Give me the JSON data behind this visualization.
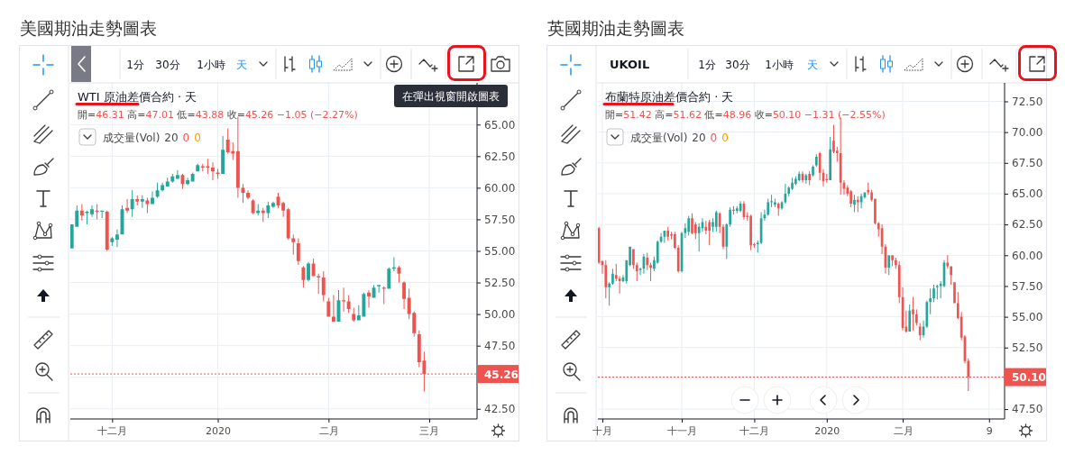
{
  "chart_data": [
    {
      "type": "candlestick",
      "title": "美國期油走勢圖表",
      "annotations": [
        "WTI 原油差價合約 · 天",
        "開=46.31 高=47.01 低=43.88 收=45.26 −1.05 (−2.27%)",
        "成交量(Vol) 20 0 0",
        "1分",
        "30分",
        "1小時",
        "天",
        "在彈出視窗開啟圖表"
      ],
      "categories": [
        null,
        null,
        null,
        null,
        null,
        null,
        null,
        null,
        "十二月",
        null,
        null,
        null,
        null,
        null,
        null,
        null,
        null,
        null,
        null,
        null,
        null,
        null,
        null,
        null,
        null,
        null,
        null,
        null,
        null,
        "2020",
        null,
        null,
        null,
        null,
        null,
        null,
        null,
        null,
        null,
        null,
        null,
        null,
        null,
        null,
        null,
        null,
        null,
        null,
        null,
        null,
        null,
        "二月",
        null,
        null,
        null,
        null,
        null,
        null,
        null,
        null,
        null,
        null,
        null,
        null,
        null,
        null,
        null,
        null,
        null,
        null,
        null,
        "三月",
        null,
        null,
        null,
        null,
        null,
        null,
        null,
        null,
        null
      ],
      "ohlc": [
        [
          55.2,
          57.1,
          55.2,
          57.1
        ],
        [
          56.9,
          58.6,
          56.9,
          58.2
        ],
        [
          58.2,
          58.7,
          57.4,
          57.8
        ],
        [
          58.0,
          58.2,
          57.1,
          58.1
        ],
        [
          57.9,
          58.6,
          57.7,
          58.3
        ],
        [
          58.2,
          58.7,
          57.5,
          58.1
        ],
        [
          58.1,
          58.2,
          57.6,
          58.2
        ],
        [
          58.1,
          58.2,
          55.0,
          55.1
        ],
        [
          55.7,
          56.1,
          55.4,
          56.0
        ],
        [
          55.9,
          56.7,
          55.3,
          56.3
        ],
        [
          56.3,
          58.6,
          56.3,
          58.3
        ],
        [
          58.4,
          59.1,
          58.0,
          58.2
        ],
        [
          58.3,
          59.8,
          57.7,
          59.1
        ],
        [
          59.1,
          59.4,
          58.6,
          58.9
        ],
        [
          58.9,
          59.4,
          58.4,
          59.1
        ],
        [
          59.0,
          59.2,
          58.0,
          58.7
        ],
        [
          58.7,
          59.7,
          58.7,
          59.2
        ],
        [
          59.3,
          60.4,
          59.2,
          59.8
        ],
        [
          59.8,
          60.4,
          59.7,
          60.2
        ],
        [
          60.1,
          60.8,
          60.1,
          60.5
        ],
        [
          60.5,
          61.1,
          60.4,
          60.9
        ],
        [
          60.7,
          61.4,
          60.7,
          61.0
        ],
        [
          61.0,
          61.1,
          59.9,
          60.3
        ],
        [
          60.3,
          60.8,
          60.2,
          60.6
        ],
        [
          60.5,
          61.2,
          60.5,
          61.1
        ],
        [
          61.3,
          61.9,
          61.3,
          61.8
        ],
        [
          61.7,
          61.9,
          61.3,
          61.6
        ],
        [
          61.7,
          62.3,
          61.1,
          61.6
        ],
        [
          61.6,
          62.0,
          60.6,
          61.3
        ],
        [
          61.2,
          61.5,
          60.7,
          61.1
        ],
        [
          61.1,
          64.1,
          61.1,
          63.0
        ],
        [
          63.8,
          64.7,
          62.7,
          62.8
        ],
        [
          62.9,
          63.6,
          62.2,
          62.7
        ],
        [
          62.9,
          65.6,
          59.2,
          60.0
        ],
        [
          60.0,
          60.3,
          58.8,
          59.6
        ],
        [
          59.6,
          59.8,
          59.1,
          59.2
        ],
        [
          59.0,
          59.1,
          57.9,
          58.0
        ],
        [
          58.0,
          58.7,
          57.8,
          58.2
        ],
        [
          58.2,
          58.4,
          57.3,
          58.0
        ],
        [
          58.0,
          58.9,
          57.6,
          58.6
        ],
        [
          58.5,
          58.9,
          58.4,
          58.8
        ],
        [
          59.3,
          59.6,
          58.4,
          58.6
        ],
        [
          58.8,
          58.9,
          57.7,
          58.2
        ],
        [
          58.3,
          58.4,
          55.9,
          56.0
        ],
        [
          56.0,
          56.3,
          54.7,
          55.7
        ],
        [
          55.6,
          56.0,
          53.9,
          54.2
        ],
        [
          53.7,
          53.8,
          52.1,
          52.7
        ],
        [
          52.7,
          54.1,
          52.6,
          54.0
        ],
        [
          54.0,
          54.4,
          53.0,
          53.0
        ],
        [
          53.0,
          53.2,
          51.6,
          52.9
        ],
        [
          52.9,
          53.4,
          51.0,
          51.5
        ],
        [
          51.0,
          51.3,
          49.8,
          49.8
        ],
        [
          49.8,
          51.5,
          49.4,
          49.4
        ],
        [
          49.4,
          51.9,
          49.4,
          51.1
        ],
        [
          51.1,
          52.1,
          50.2,
          51.0
        ],
        [
          51.0,
          51.5,
          50.1,
          50.4
        ],
        [
          50.0,
          50.5,
          49.4,
          49.5
        ],
        [
          49.5,
          50.7,
          49.5,
          49.9
        ],
        [
          49.8,
          51.7,
          49.8,
          51.6
        ],
        [
          51.7,
          51.9,
          50.5,
          51.4
        ],
        [
          51.3,
          52.3,
          51.3,
          52.1
        ],
        [
          52.2,
          52.3,
          51.7,
          52.3
        ],
        [
          52.1,
          52.2,
          50.8,
          52.0
        ],
        [
          52.0,
          53.7,
          52.0,
          53.6
        ],
        [
          53.6,
          54.5,
          53.4,
          53.7
        ],
        [
          53.7,
          53.8,
          52.5,
          53.2
        ],
        [
          52.5,
          52.6,
          50.4,
          51.2
        ],
        [
          51.3,
          52.0,
          49.6,
          50.0
        ],
        [
          50.1,
          50.2,
          48.2,
          48.5
        ],
        [
          48.4,
          48.7,
          45.8,
          46.2
        ],
        [
          46.31,
          47.01,
          43.88,
          45.26
        ],
        null,
        null,
        null,
        null,
        null,
        null,
        null,
        null,
        null,
        null
      ],
      "ylim": [
        41.7,
        68.3
      ],
      "yticks": [
        {
          "value": 42.5,
          "label": "42.50"
        },
        {
          "value": 45,
          "label": null
        },
        {
          "value": 47.5,
          "label": "47.50"
        },
        {
          "value": 50,
          "label": "50.00"
        },
        {
          "value": 52.5,
          "label": "52.50"
        },
        {
          "value": 55,
          "label": "55.00"
        },
        {
          "value": 57.5,
          "label": "57.50"
        },
        {
          "value": 60,
          "label": "60.00"
        },
        {
          "value": 62.5,
          "label": "62.50"
        },
        {
          "value": 65,
          "label": "65.00"
        }
      ],
      "ref_lines": [
        {
          "axis": "y",
          "value": 45.26,
          "label": "45.26",
          "color": "#ef5350",
          "line_style": "dotted"
        }
      ],
      "grid": true
    },
    {
      "type": "candlestick",
      "title": "英國期油走勢圖表",
      "annotations": [
        "布蘭特原油差價合約 · 天",
        "開=51.42 高=51.62 低=48.96 收=50.10 −1.31 (−2.55%)",
        "成交量(Vol) 20 0 0",
        "1分",
        "30分",
        "1小時",
        "天",
        "UKOIL"
      ],
      "categories": [
        null,
        "十月",
        null,
        null,
        null,
        null,
        null,
        null,
        null,
        null,
        null,
        null,
        null,
        null,
        null,
        null,
        null,
        null,
        null,
        null,
        null,
        null,
        null,
        null,
        "十一月",
        null,
        null,
        null,
        null,
        null,
        null,
        null,
        null,
        null,
        null,
        null,
        null,
        null,
        null,
        null,
        null,
        null,
        null,
        null,
        null,
        "十二月",
        null,
        null,
        null,
        null,
        null,
        null,
        null,
        null,
        null,
        null,
        null,
        null,
        null,
        null,
        null,
        null,
        null,
        null,
        null,
        null,
        "2020",
        null,
        null,
        null,
        null,
        null,
        null,
        null,
        null,
        null,
        null,
        null,
        null,
        null,
        null,
        null,
        null,
        null,
        null,
        null,
        null,
        null,
        "二月",
        null,
        null,
        null,
        null,
        null,
        null,
        null,
        null,
        null,
        null,
        null,
        null,
        null,
        null,
        null,
        null,
        null,
        null,
        null,
        null,
        null,
        null,
        null,
        null,
        "9",
        null,
        null,
        null,
        null
      ],
      "ohlc": [
        [
          62.2,
          62.3,
          59.3,
          59.4
        ],
        [
          59.5,
          59.6,
          58.5,
          59.2
        ],
        [
          59.2,
          59.6,
          56.5,
          57.4
        ],
        [
          57.4,
          57.8,
          55.9,
          57.7
        ],
        [
          57.7,
          58.9,
          57.6,
          58.5
        ],
        [
          58.4,
          59.3,
          57.9,
          58.1
        ],
        [
          58.1,
          58.3,
          56.9,
          57.9
        ],
        [
          57.9,
          58.4,
          57.8,
          58.2
        ],
        [
          57.9,
          59.6,
          57.7,
          59.6
        ],
        [
          59.2,
          60.7,
          59.1,
          60.7
        ],
        [
          60.5,
          60.5,
          58.9,
          59.2
        ],
        [
          59.2,
          59.4,
          57.9,
          58.7
        ],
        [
          58.8,
          59.0,
          58.4,
          58.9
        ],
        [
          58.9,
          60.1,
          58.5,
          59.9
        ],
        [
          59.8,
          60.2,
          58.8,
          59.2
        ],
        [
          59.2,
          59.4,
          57.9,
          59.0
        ],
        [
          58.9,
          59.9,
          58.7,
          59.6
        ],
        [
          59.4,
          61.2,
          59.3,
          61.1
        ],
        [
          61.1,
          61.8,
          61.0,
          61.5
        ],
        [
          61.5,
          62.0,
          61.0,
          62.0
        ],
        [
          62.0,
          62.3,
          61.2,
          61.5
        ],
        [
          61.7,
          61.9,
          61.3,
          61.6
        ],
        [
          61.7,
          61.9,
          60.5,
          60.6
        ],
        [
          60.6,
          60.8,
          58.6,
          58.7
        ],
        [
          58.7,
          61.9,
          58.6,
          61.8
        ],
        [
          61.8,
          62.6,
          61.4,
          62.2
        ],
        [
          61.9,
          63.2,
          61.6,
          63.0
        ],
        [
          63.0,
          63.4,
          61.7,
          61.8
        ],
        [
          62.5,
          62.7,
          61.3,
          61.8
        ],
        [
          61.8,
          62.6,
          60.3,
          62.3
        ],
        [
          62.2,
          63.0,
          61.9,
          62.7
        ],
        [
          62.3,
          62.8,
          61.7,
          62.0
        ],
        [
          62.7,
          62.9,
          60.8,
          62.0
        ],
        [
          62.3,
          63.0,
          61.9,
          62.7
        ],
        [
          62.3,
          63.6,
          61.9,
          63.5
        ],
        [
          63.4,
          63.5,
          61.8,
          62.3
        ],
        [
          62.3,
          62.5,
          60.5,
          60.7
        ],
        [
          60.7,
          62.6,
          59.7,
          62.5
        ],
        [
          62.5,
          63.9,
          62.3,
          63.7
        ],
        [
          63.7,
          64.0,
          63.3,
          63.6
        ],
        [
          63.6,
          64.0,
          63.4,
          63.8
        ],
        [
          63.6,
          64.4,
          63.5,
          64.2
        ],
        [
          64.2,
          64.4,
          62.9,
          63.1
        ],
        [
          63.2,
          63.5,
          62.8,
          63.1
        ],
        [
          63.2,
          63.3,
          60.4,
          60.8
        ],
        [
          60.9,
          61.0,
          60.6,
          60.8
        ],
        [
          60.9,
          61.2,
          60.2,
          61.0
        ],
        [
          61.0,
          63.5,
          60.9,
          63.0
        ],
        [
          63.0,
          63.7,
          62.8,
          63.3
        ],
        [
          63.3,
          64.6,
          63.2,
          64.3
        ],
        [
          64.3,
          64.9,
          63.9,
          64.4
        ],
        [
          64.1,
          64.6,
          63.9,
          64.3
        ],
        [
          64.2,
          64.3,
          63.2,
          63.8
        ],
        [
          63.8,
          64.4,
          63.7,
          64.3
        ],
        [
          64.3,
          65.8,
          64.2,
          65.0
        ],
        [
          65.0,
          65.6,
          64.8,
          65.5
        ],
        [
          65.4,
          66.3,
          65.3,
          65.9
        ],
        [
          65.8,
          66.4,
          65.7,
          66.2
        ],
        [
          66.1,
          66.8,
          66.0,
          66.6
        ],
        [
          66.6,
          66.8,
          65.9,
          66.1
        ],
        [
          66.1,
          66.6,
          65.8,
          66.5
        ],
        [
          66.6,
          66.8,
          65.7,
          66.1
        ],
        [
          66.5,
          67.3,
          66.4,
          67.2
        ],
        [
          67.3,
          68.2,
          67.2,
          68.0
        ],
        [
          68.3,
          68.4,
          66.1,
          66.7
        ],
        [
          66.7,
          67.0,
          65.6,
          66.0
        ],
        [
          66.2,
          66.6,
          65.9,
          66.1
        ],
        [
          66.1,
          69.6,
          66.1,
          68.6
        ],
        [
          69.3,
          70.6,
          68.3,
          68.4
        ],
        [
          68.5,
          68.8,
          67.6,
          68.3
        ],
        [
          68.3,
          71.2,
          64.9,
          65.9
        ],
        [
          65.9,
          66.1,
          64.9,
          65.4
        ],
        [
          65.5,
          65.7,
          64.8,
          65.0
        ],
        [
          65.2,
          65.3,
          63.9,
          64.2
        ],
        [
          64.1,
          64.9,
          63.5,
          64.5
        ],
        [
          64.5,
          64.8,
          63.5,
          64.3
        ],
        [
          64.3,
          65.0,
          63.8,
          64.8
        ],
        [
          64.7,
          65.1,
          64.6,
          65.1
        ],
        [
          65.3,
          65.9,
          64.9,
          65.1
        ],
        [
          65.1,
          65.3,
          64.4,
          64.5
        ],
        [
          64.6,
          64.6,
          62.5,
          62.6
        ],
        [
          62.6,
          62.7,
          61.5,
          62.1
        ],
        [
          62.2,
          62.5,
          60.1,
          60.7
        ],
        [
          60.7,
          60.9,
          58.5,
          59.0
        ],
        [
          59.0,
          60.0,
          58.4,
          60.0
        ],
        [
          60.0,
          60.0,
          59.1,
          59.6
        ],
        [
          59.6,
          59.8,
          58.9,
          59.2
        ],
        [
          59.2,
          59.5,
          56.1,
          56.6
        ],
        [
          56.6,
          57.4,
          53.9,
          54.1
        ],
        [
          54.2,
          55.5,
          53.7,
          53.8
        ],
        [
          53.8,
          56.0,
          53.8,
          55.5
        ],
        [
          55.6,
          56.6,
          53.9,
          55.2
        ],
        [
          55.2,
          55.6,
          54.3,
          54.5
        ],
        [
          54.2,
          54.5,
          53.1,
          53.5
        ],
        [
          53.5,
          54.7,
          53.3,
          54.2
        ],
        [
          54.2,
          56.3,
          54.1,
          56.2
        ],
        [
          56.2,
          57.3,
          55.2,
          56.5
        ],
        [
          56.5,
          57.6,
          56.2,
          57.3
        ],
        [
          57.4,
          57.6,
          56.4,
          57.5
        ],
        [
          57.5,
          57.9,
          56.5,
          57.7
        ],
        [
          57.5,
          59.6,
          57.4,
          59.4
        ],
        [
          59.4,
          60.0,
          58.9,
          59.1
        ],
        [
          59.1,
          59.1,
          57.6,
          58.4
        ],
        [
          57.8,
          57.8,
          56.1,
          56.1
        ],
        [
          56.1,
          57.0,
          54.8,
          54.9
        ],
        [
          55.0,
          55.4,
          53.1,
          53.3
        ],
        [
          53.4,
          53.5,
          51.2,
          51.4
        ],
        [
          51.42,
          51.62,
          48.96,
          50.1
        ],
        null,
        null,
        null,
        null,
        null,
        null,
        null,
        null,
        null,
        null
      ],
      "ylim": [
        46.7,
        74.0
      ],
      "yticks": [
        {
          "value": 47.5,
          "label": "47.50"
        },
        {
          "value": 50,
          "label": null
        },
        {
          "value": 52.5,
          "label": "52.50"
        },
        {
          "value": 55,
          "label": "55.00"
        },
        {
          "value": 57.5,
          "label": "57.50"
        },
        {
          "value": 60,
          "label": "60.00"
        },
        {
          "value": 62.5,
          "label": "62.50"
        },
        {
          "value": 65,
          "label": "65.00"
        },
        {
          "value": 67.5,
          "label": "67.50"
        },
        {
          "value": 70,
          "label": "70.00"
        },
        {
          "value": 72.5,
          "label": "72.50"
        }
      ],
      "ref_lines": [
        {
          "axis": "y",
          "value": 50.1,
          "label": "50.10",
          "color": "#ef5350",
          "line_style": "dotted"
        }
      ],
      "grid": true
    }
  ]
}
